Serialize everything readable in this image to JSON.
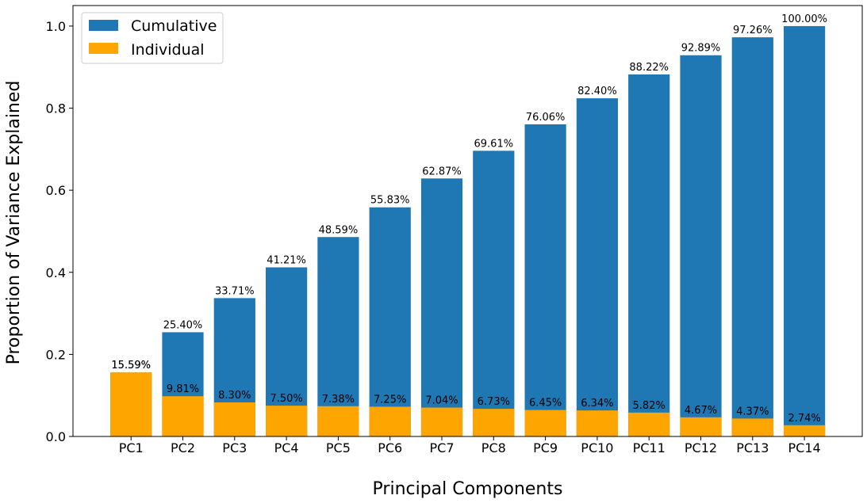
{
  "chart_data": {
    "type": "bar",
    "categories": [
      "PC1",
      "PC2",
      "PC3",
      "PC4",
      "PC5",
      "PC6",
      "PC7",
      "PC8",
      "PC9",
      "PC10",
      "PC11",
      "PC12",
      "PC13",
      "PC14"
    ],
    "series": [
      {
        "name": "Cumulative",
        "color": "#1f77b4",
        "values": [
          0.1559,
          0.254,
          0.3371,
          0.4121,
          0.4859,
          0.5583,
          0.6287,
          0.6961,
          0.7606,
          0.824,
          0.8822,
          0.9289,
          0.9726,
          1.0
        ],
        "labels": [
          "15.59%",
          "25.40%",
          "33.71%",
          "41.21%",
          "48.59%",
          "55.83%",
          "62.87%",
          "69.61%",
          "76.06%",
          "82.40%",
          "88.22%",
          "92.89%",
          "97.26%",
          "100.00%"
        ]
      },
      {
        "name": "Individual",
        "color": "#ffa500",
        "values": [
          0.1559,
          0.0981,
          0.083,
          0.075,
          0.0738,
          0.0725,
          0.0704,
          0.0673,
          0.0645,
          0.0634,
          0.0582,
          0.0467,
          0.0437,
          0.0274
        ],
        "labels": [
          "15.59%",
          "9.81%",
          "8.30%",
          "7.50%",
          "7.38%",
          "7.25%",
          "7.04%",
          "6.73%",
          "6.45%",
          "6.34%",
          "5.82%",
          "4.67%",
          "4.37%",
          "2.74%"
        ]
      }
    ],
    "xlabel": "Principal Components",
    "ylabel": "Proportion of Variance Explained",
    "ylim": [
      0,
      1.05
    ],
    "yticks": [
      "0.0",
      "0.2",
      "0.4",
      "0.6",
      "0.8",
      "1.0"
    ],
    "grid": false,
    "legend": "top-left"
  }
}
